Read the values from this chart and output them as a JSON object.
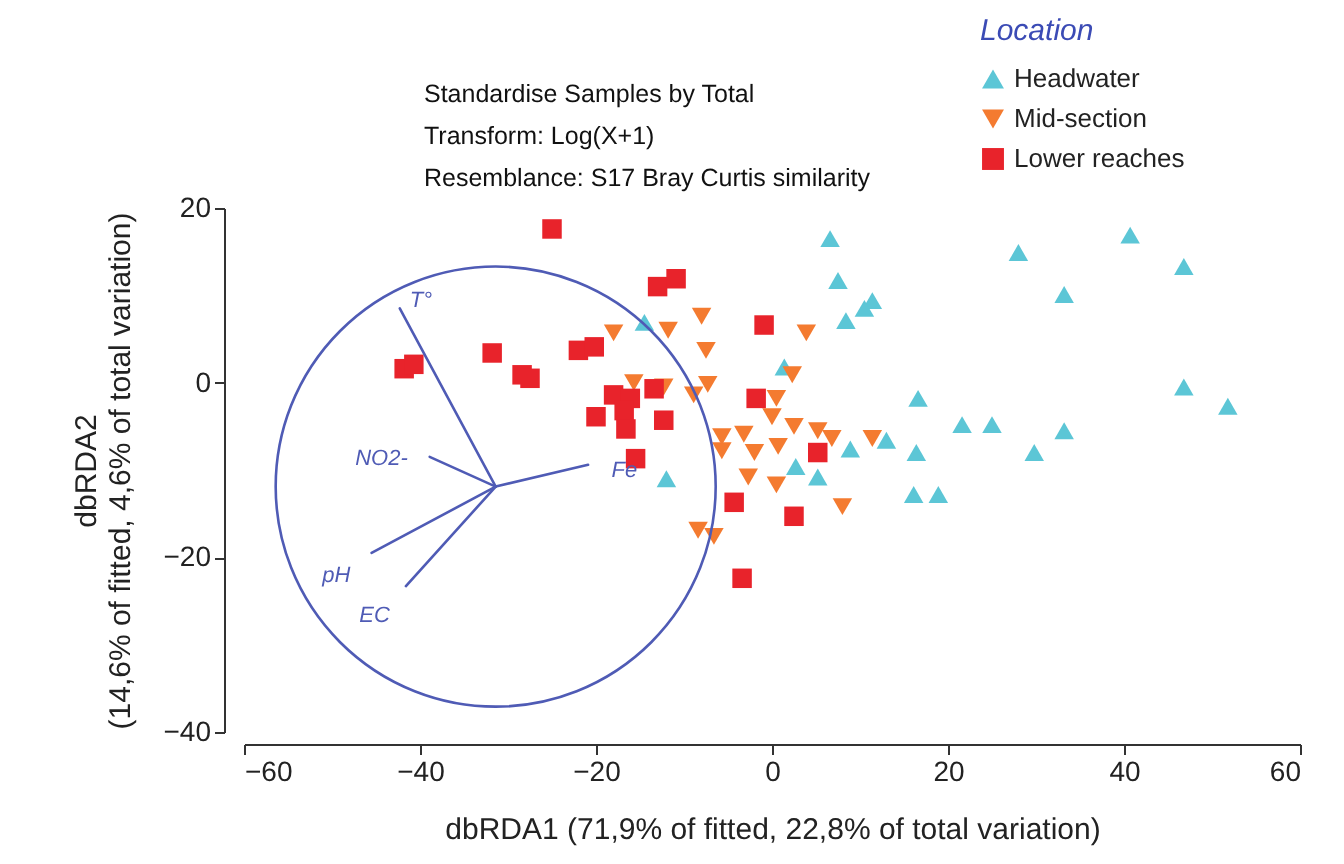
{
  "chart_data": {
    "type": "scatter",
    "xlabel": "dbRDA1 (71,9% of fitted, 22,8% of total variation)",
    "ylabel": "dbRDA2\n(14,6% of fitted, 4,6% of total variation)",
    "legend_title": "Location",
    "annotations": [
      "Standardise Samples by Total",
      "Transform: Log(X+1)",
      "Resemblance: S17 Bray Curtis similarity"
    ],
    "xlim": [
      -60,
      60
    ],
    "ylim": [
      -40,
      20
    ],
    "xticks": [
      -60,
      -40,
      -20,
      0,
      20,
      40,
      60
    ],
    "yticks": [
      -40,
      -20,
      0,
      20
    ],
    "grid": false,
    "legend": "top right",
    "series": [
      {
        "name": "Headwater",
        "type": "scatter",
        "marker": "triangle",
        "color": "#5cc6d6",
        "x": [
          6.6,
          7.5,
          11.4,
          10.5,
          8.4,
          1.4,
          16.6,
          21.6,
          25,
          33.2,
          29.8,
          16.4,
          16.1,
          18.9,
          13,
          8.9,
          2.7,
          5.2,
          28,
          40.7,
          46.8,
          33.2,
          46.8,
          51.8,
          -14.5,
          -12
        ],
        "values": [
          16.5,
          11.7,
          9.4,
          8.5,
          7.1,
          1.8,
          -1.8,
          -4.8,
          -4.8,
          -5.5,
          -8,
          -8,
          -12.8,
          -12.8,
          -6.6,
          -7.6,
          -9.6,
          -10.8,
          14.9,
          16.9,
          13.3,
          10.1,
          -0.5,
          -2.7,
          6.9,
          -11
        ]
      },
      {
        "name": "Mid-section",
        "type": "scatter",
        "marker": "triangle-down",
        "color": "#f47b30",
        "x": [
          -18,
          -11.8,
          -8,
          -7.5,
          -15.7,
          -12.3,
          -8.9,
          -7.3,
          -5.7,
          -3.2,
          -2.7,
          -8.4,
          -6.6,
          3.9,
          2.3,
          0.5,
          0,
          2.5,
          -5.7,
          5.2,
          6.8,
          11.4,
          -2,
          0.7,
          0.5,
          8
        ],
        "values": [
          5.7,
          6,
          7.6,
          3.7,
          0,
          -0.5,
          -1.4,
          -0.2,
          -7.8,
          -5.9,
          -10.8,
          -16.9,
          -17.6,
          5.7,
          0.9,
          -1.8,
          -3.9,
          -5,
          -6.2,
          -5.5,
          -6.4,
          -6.4,
          -8,
          -7.3,
          -11.7,
          -14.2
        ]
      },
      {
        "name": "Lower reaches",
        "type": "scatter",
        "marker": "square",
        "color": "#e8232b",
        "x": [
          -25,
          -13,
          -10.9,
          -31.8,
          -41.8,
          -40.7,
          -22,
          -20.2,
          -28.4,
          -27.5,
          -18,
          -16.1,
          -13.4,
          -20,
          -16.8,
          -16.6,
          -12.3,
          -15.5,
          -4.3,
          -3.4,
          -0.9,
          -1.8,
          5.2,
          2.5
        ],
        "values": [
          17.6,
          11,
          11.9,
          3.4,
          1.6,
          2.1,
          3.7,
          4.1,
          0.9,
          0.5,
          -1.4,
          -1.8,
          -0.7,
          -3.9,
          -3.2,
          -5.3,
          -4.3,
          -8.7,
          -13.7,
          -22.4,
          6.6,
          -1.8,
          -8,
          -15.3
        ]
      },
      {
        "name": "T°",
        "type": "line",
        "color": "#4f5bb5",
        "x": [
          -31.4,
          -42.3
        ],
        "values": [
          -11.9,
          8.5
        ]
      },
      {
        "name": "NO2-",
        "type": "line",
        "color": "#4f5bb5",
        "x": [
          -31.4,
          -38.9
        ],
        "values": [
          -11.9,
          -8.5
        ]
      },
      {
        "name": "Fe",
        "type": "line",
        "color": "#4f5bb5",
        "x": [
          -31.4,
          -20.9
        ],
        "values": [
          -11.9,
          -9.4
        ]
      },
      {
        "name": "pH",
        "type": "line",
        "color": "#4f5bb5",
        "x": [
          -31.4,
          -45.5
        ],
        "values": [
          -11.9,
          -19.5
        ]
      },
      {
        "name": "EC",
        "type": "line",
        "color": "#4f5bb5",
        "x": [
          -31.4,
          -41.6
        ],
        "values": [
          -11.9,
          -23.3
        ]
      }
    ]
  }
}
